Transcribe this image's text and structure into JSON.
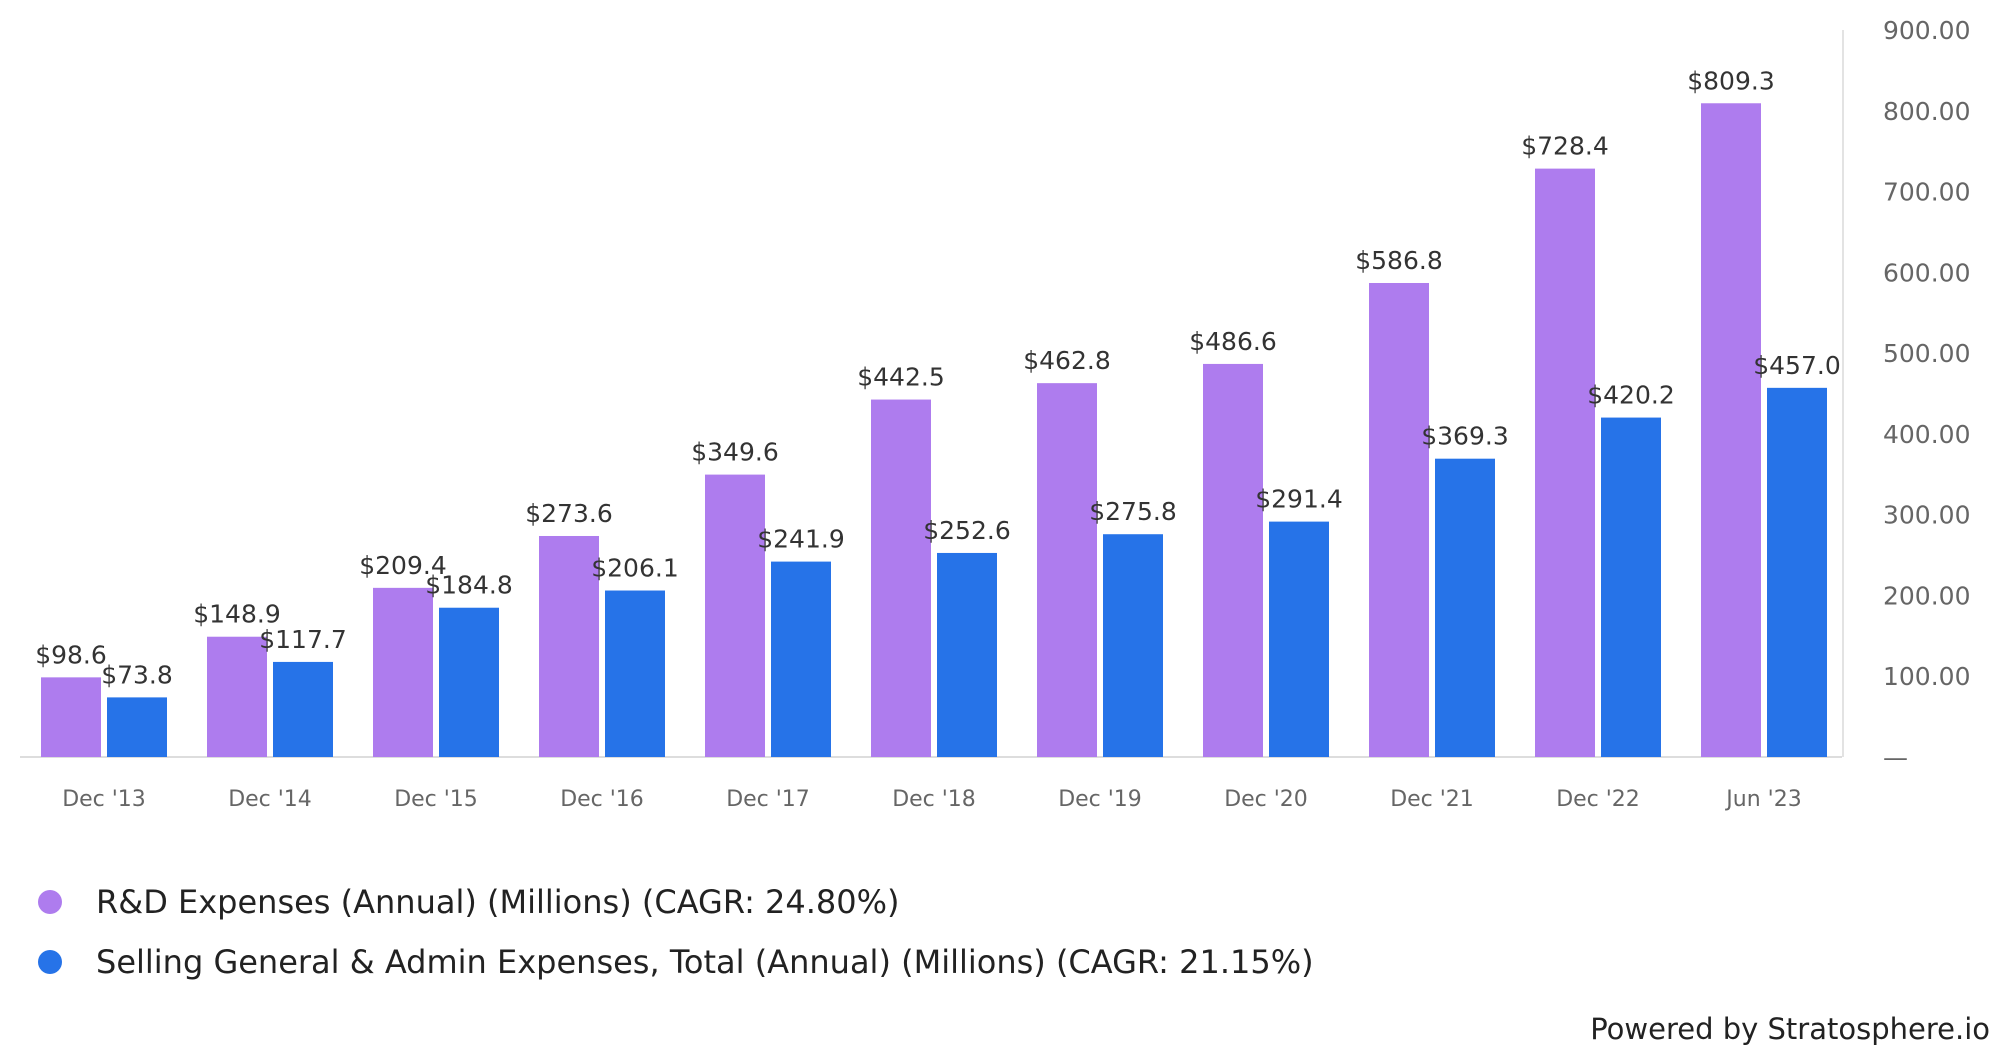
{
  "chart_data": {
    "type": "bar",
    "categories": [
      "Dec '13",
      "Dec '14",
      "Dec '15",
      "Dec '16",
      "Dec '17",
      "Dec '18",
      "Dec '19",
      "Dec '20",
      "Dec '21",
      "Dec '22",
      "Jun '23"
    ],
    "series": [
      {
        "name": "R&D Expenses (Annual) (Millions) (CAGR: 24.80%)",
        "color": "#ae7cee",
        "values": [
          98.6,
          148.9,
          209.4,
          273.6,
          349.6,
          442.5,
          462.8,
          486.6,
          586.8,
          728.4,
          809.3
        ],
        "labels": [
          "$98.6",
          "$148.9",
          "$209.4",
          "$273.6",
          "$349.6",
          "$442.5",
          "$462.8",
          "$486.6",
          "$586.8",
          "$728.4",
          "$809.3"
        ]
      },
      {
        "name": "Selling General & Admin Expenses, Total (Annual) (Millions) (CAGR: 21.15%)",
        "color": "#2673e8",
        "values": [
          73.8,
          117.7,
          184.8,
          206.1,
          241.9,
          252.6,
          275.8,
          291.4,
          369.3,
          420.2,
          457.0
        ],
        "labels": [
          "$73.8",
          "$117.7",
          "$184.8",
          "$206.1",
          "$241.9",
          "$252.6",
          "$275.8",
          "$291.4",
          "$369.3",
          "$420.2",
          "$457.0"
        ]
      }
    ],
    "y_ticks": [
      "—",
      "100.00",
      "200.00",
      "300.00",
      "400.00",
      "500.00",
      "600.00",
      "700.00",
      "800.00",
      "900.00"
    ],
    "ylim": [
      0,
      900
    ],
    "y_axis_side": "right",
    "grid": false,
    "legend_position": "bottom-left",
    "title": "",
    "xlabel": "",
    "ylabel": ""
  },
  "footer": {
    "credit": "Powered by Stratosphere.io"
  }
}
